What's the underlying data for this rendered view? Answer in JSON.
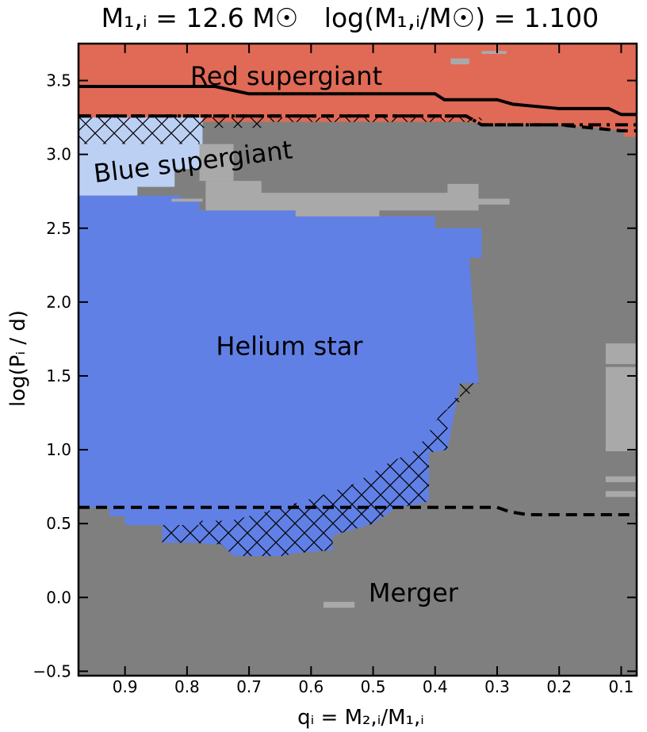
{
  "chart_data": {
    "type": "heatmap",
    "title_left": "M₁,ᵢ = 12.6 M☉",
    "title_right": "log(M₁,ᵢ/M☉) = 1.100",
    "xlabel": "qᵢ = M₂,ᵢ/M₁,ᵢ",
    "ylabel": "log(Pᵢ / d)",
    "xlim": [
      0.975,
      0.075
    ],
    "ylim": [
      -0.53,
      3.75
    ],
    "x_ticks": [
      0.9,
      0.8,
      0.7,
      0.6,
      0.5,
      0.4,
      0.3,
      0.2,
      0.1
    ],
    "x_tick_labels": [
      "0.9",
      "0.8",
      "0.7",
      "0.6",
      "0.5",
      "0.4",
      "0.3",
      "0.2",
      "0.1"
    ],
    "y_ticks": [
      -0.5,
      0.0,
      0.5,
      1.0,
      1.5,
      2.0,
      2.5,
      3.0,
      3.5
    ],
    "y_tick_labels": [
      "−0.5",
      "0.0",
      "0.5",
      "1.0",
      "1.5",
      "2.0",
      "2.5",
      "3.0",
      "3.5"
    ],
    "colors": {
      "red_supergiant": "#e06a56",
      "blue_supergiant": "#bcd0f4",
      "helium_star": "#6180e6",
      "merger": "#7f7f7f",
      "other": "#a9a9a9"
    },
    "region_labels": [
      {
        "text": "Red supergiant",
        "x": 0.64,
        "y": 3.52,
        "rotate": 0
      },
      {
        "text": "Blue supergiant",
        "x": 0.79,
        "y": 2.94,
        "rotate": -7
      },
      {
        "text": "Helium star",
        "x": 0.635,
        "y": 1.69,
        "rotate": 0
      },
      {
        "text": "Merger",
        "x": 0.435,
        "y": 0.02,
        "rotate": 0
      }
    ],
    "regions": [
      {
        "name": "Red supergiant",
        "color": "#e06a56",
        "polygon": [
          [
            0.975,
            3.75
          ],
          [
            0.075,
            3.75
          ],
          [
            0.075,
            3.1
          ],
          [
            0.095,
            3.1
          ],
          [
            0.095,
            3.16
          ],
          [
            0.2,
            3.2
          ],
          [
            0.3,
            3.2
          ],
          [
            0.35,
            3.22
          ],
          [
            0.975,
            3.22
          ]
        ]
      },
      {
        "name": "Blue supergiant",
        "color": "#bcd0f4",
        "polygon": [
          [
            0.975,
            3.25
          ],
          [
            0.775,
            3.25
          ],
          [
            0.775,
            2.9
          ],
          [
            0.82,
            2.9
          ],
          [
            0.82,
            2.78
          ],
          [
            0.88,
            2.78
          ],
          [
            0.88,
            2.72
          ],
          [
            0.975,
            2.72
          ]
        ]
      },
      {
        "name": "Merger",
        "color": "#7f7f7f",
        "polygon": [
          [
            0.975,
            -0.53
          ],
          [
            0.075,
            -0.53
          ],
          [
            0.075,
            3.12
          ],
          [
            0.1,
            3.12
          ],
          [
            0.1,
            3.15
          ],
          [
            0.2,
            3.18
          ],
          [
            0.3,
            3.2
          ],
          [
            0.68,
            3.22
          ],
          [
            0.68,
            2.82
          ],
          [
            0.77,
            2.82
          ],
          [
            0.77,
            2.62
          ],
          [
            0.81,
            2.62
          ],
          [
            0.81,
            2.72
          ],
          [
            0.975,
            2.72
          ]
        ]
      },
      {
        "name": "Helium star",
        "color": "#6180e6",
        "polygon": [
          [
            0.975,
            2.72
          ],
          [
            0.81,
            2.72
          ],
          [
            0.81,
            2.68
          ],
          [
            0.78,
            2.68
          ],
          [
            0.78,
            2.62
          ],
          [
            0.625,
            2.62
          ],
          [
            0.625,
            2.58
          ],
          [
            0.4,
            2.58
          ],
          [
            0.4,
            2.5
          ],
          [
            0.325,
            2.5
          ],
          [
            0.325,
            2.3
          ],
          [
            0.345,
            2.3
          ],
          [
            0.33,
            1.45
          ],
          [
            0.36,
            1.45
          ],
          [
            0.38,
            1.0
          ],
          [
            0.41,
            0.98
          ],
          [
            0.41,
            0.65
          ],
          [
            0.465,
            0.6
          ],
          [
            0.5,
            0.5
          ],
          [
            0.565,
            0.42
          ],
          [
            0.565,
            0.32
          ],
          [
            0.625,
            0.3
          ],
          [
            0.645,
            0.28
          ],
          [
            0.725,
            0.28
          ],
          [
            0.745,
            0.36
          ],
          [
            0.76,
            0.36
          ],
          [
            0.79,
            0.37
          ],
          [
            0.84,
            0.37
          ],
          [
            0.84,
            0.49
          ],
          [
            0.9,
            0.49
          ],
          [
            0.9,
            0.55
          ],
          [
            0.925,
            0.55
          ],
          [
            0.925,
            0.61
          ],
          [
            0.975,
            0.61
          ]
        ]
      },
      {
        "name": "Other",
        "color": "#a9a9a9",
        "polygon": [
          [
            0.77,
            2.82
          ],
          [
            0.68,
            2.82
          ],
          [
            0.68,
            2.74
          ],
          [
            0.38,
            2.74
          ],
          [
            0.38,
            2.8
          ],
          [
            0.33,
            2.8
          ],
          [
            0.33,
            2.62
          ],
          [
            0.49,
            2.62
          ],
          [
            0.49,
            2.58
          ],
          [
            0.625,
            2.58
          ],
          [
            0.625,
            2.62
          ],
          [
            0.77,
            2.62
          ]
        ]
      },
      {
        "name": "Other",
        "color": "#a9a9a9",
        "polygon": [
          [
            0.78,
            3.07
          ],
          [
            0.725,
            3.07
          ],
          [
            0.725,
            2.82
          ],
          [
            0.78,
            2.82
          ]
        ]
      },
      {
        "name": "Other",
        "color": "#a9a9a9",
        "polygon": [
          [
            0.825,
            2.7
          ],
          [
            0.775,
            2.7
          ],
          [
            0.775,
            2.68
          ],
          [
            0.825,
            2.68
          ]
        ]
      },
      {
        "name": "Other",
        "color": "#a9a9a9",
        "polygon": [
          [
            0.33,
            2.7
          ],
          [
            0.28,
            2.7
          ],
          [
            0.28,
            2.66
          ],
          [
            0.33,
            2.66
          ]
        ]
      },
      {
        "name": "Other",
        "color": "#a9a9a9",
        "polygon": [
          [
            0.58,
            -0.03
          ],
          [
            0.53,
            -0.03
          ],
          [
            0.53,
            -0.07
          ],
          [
            0.58,
            -0.07
          ]
        ]
      },
      {
        "name": "Other",
        "color": "#a9a9a9",
        "polygon": [
          [
            0.375,
            3.65
          ],
          [
            0.345,
            3.65
          ],
          [
            0.345,
            3.61
          ],
          [
            0.375,
            3.61
          ]
        ]
      },
      {
        "name": "Other",
        "color": "#a9a9a9",
        "polygon": [
          [
            0.325,
            3.7
          ],
          [
            0.285,
            3.7
          ],
          [
            0.285,
            3.68
          ],
          [
            0.325,
            3.68
          ]
        ]
      },
      {
        "name": "Other",
        "color": "#a9a9a9",
        "polygon": [
          [
            0.125,
            1.72
          ],
          [
            0.075,
            1.72
          ],
          [
            0.075,
            1.58
          ],
          [
            0.125,
            1.58
          ]
        ]
      },
      {
        "name": "Other",
        "color": "#a9a9a9",
        "polygon": [
          [
            0.125,
            1.56
          ],
          [
            0.075,
            1.56
          ],
          [
            0.075,
            0.99
          ],
          [
            0.125,
            0.99
          ]
        ]
      },
      {
        "name": "Other",
        "color": "#a9a9a9",
        "polygon": [
          [
            0.125,
            0.82
          ],
          [
            0.075,
            0.82
          ],
          [
            0.075,
            0.78
          ],
          [
            0.125,
            0.78
          ]
        ]
      },
      {
        "name": "Other",
        "color": "#a9a9a9",
        "polygon": [
          [
            0.125,
            0.72
          ],
          [
            0.075,
            0.72
          ],
          [
            0.075,
            0.68
          ],
          [
            0.125,
            0.68
          ]
        ]
      }
    ],
    "hatched_regions": [
      {
        "name": "Red supergiant hatched",
        "polygon": [
          [
            0.975,
            3.25
          ],
          [
            0.325,
            3.25
          ],
          [
            0.325,
            3.2
          ],
          [
            0.35,
            3.22
          ],
          [
            0.68,
            3.22
          ],
          [
            0.68,
            3.18
          ],
          [
            0.78,
            3.18
          ],
          [
            0.78,
            3.07
          ],
          [
            0.975,
            3.07
          ]
        ]
      },
      {
        "name": "Helium star hatched",
        "polygon": [
          [
            0.33,
            1.45
          ],
          [
            0.36,
            1.45
          ],
          [
            0.36,
            1.35
          ],
          [
            0.38,
            1.35
          ],
          [
            0.38,
            1.0
          ],
          [
            0.41,
            0.98
          ],
          [
            0.41,
            0.65
          ],
          [
            0.465,
            0.6
          ],
          [
            0.5,
            0.5
          ],
          [
            0.565,
            0.42
          ],
          [
            0.565,
            0.32
          ],
          [
            0.625,
            0.3
          ],
          [
            0.645,
            0.28
          ],
          [
            0.725,
            0.28
          ],
          [
            0.745,
            0.36
          ],
          [
            0.76,
            0.36
          ],
          [
            0.79,
            0.37
          ],
          [
            0.84,
            0.37
          ],
          [
            0.84,
            0.49
          ],
          [
            0.78,
            0.49
          ],
          [
            0.78,
            0.52
          ],
          [
            0.73,
            0.52
          ],
          [
            0.69,
            0.56
          ],
          [
            0.64,
            0.62
          ],
          [
            0.59,
            0.68
          ],
          [
            0.53,
            0.77
          ],
          [
            0.48,
            0.9
          ],
          [
            0.43,
            1.0
          ],
          [
            0.41,
            1.12
          ],
          [
            0.39,
            1.25
          ],
          [
            0.35,
            1.35
          ],
          [
            0.33,
            1.45
          ]
        ]
      }
    ],
    "lines": [
      {
        "name": "upper solid boundary",
        "style": "solid",
        "x": [
          0.975,
          0.755,
          0.7,
          0.4,
          0.385,
          0.3,
          0.275,
          0.2,
          0.12,
          0.1,
          0.075
        ],
        "y": [
          3.46,
          3.46,
          3.41,
          3.41,
          3.37,
          3.37,
          3.34,
          3.31,
          3.31,
          3.27,
          3.27
        ]
      },
      {
        "name": "upper dashed boundary",
        "style": "dashed",
        "x": [
          0.975,
          0.35,
          0.325,
          0.2,
          0.15,
          0.1,
          0.075
        ],
        "y": [
          3.26,
          3.26,
          3.2,
          3.2,
          3.18,
          3.16,
          3.16
        ]
      },
      {
        "name": "upper dash-dot boundary",
        "style": "dashdot",
        "x": [
          0.975,
          0.35,
          0.325,
          0.075
        ],
        "y": [
          3.26,
          3.26,
          3.2,
          3.2
        ]
      },
      {
        "name": "lower dashed boundary",
        "style": "dashed",
        "x": [
          0.975,
          0.3,
          0.28,
          0.25,
          0.075
        ],
        "y": [
          0.61,
          0.61,
          0.58,
          0.56,
          0.56
        ]
      }
    ]
  }
}
